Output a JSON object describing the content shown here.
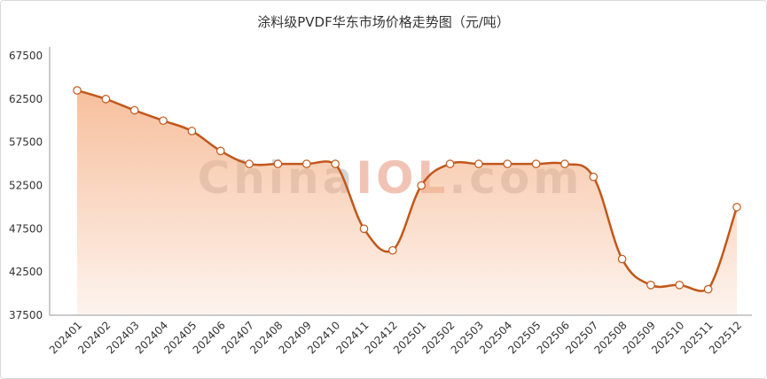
{
  "chart_data": {
    "type": "area",
    "title": "涂料级PVDF华东市场价格走势图（元/吨）",
    "watermark": {
      "parts": [
        "China",
        "IOL",
        ".com"
      ],
      "colors": [
        "#d3d3d3",
        "#f1c3b4",
        "#d3d3d3"
      ]
    },
    "categories": [
      "202401",
      "202402",
      "202403",
      "202404",
      "202405",
      "202406",
      "202407",
      "202408",
      "202409",
      "202410",
      "202411",
      "202412",
      "202501",
      "202502",
      "202503",
      "202504",
      "202505",
      "202506",
      "202507",
      "202508",
      "202509",
      "202510",
      "202511",
      "202512"
    ],
    "values": [
      63500,
      62500,
      61200,
      60000,
      58800,
      56500,
      55000,
      55000,
      55000,
      55000,
      47500,
      45000,
      52500,
      55000,
      55000,
      55000,
      55000,
      55000,
      53500,
      44000,
      41000,
      41000,
      40500,
      50000
    ],
    "ylim": [
      37500,
      67500
    ],
    "yticks": [
      37500,
      42500,
      47500,
      52500,
      57500,
      62500,
      67500
    ],
    "colors": {
      "line": "#c2571a",
      "area_top": "#f5b48c",
      "area_bottom": "#ffffff",
      "marker_fill": "#ffffff",
      "marker_stroke": "#c2571a",
      "axis": "#999999"
    },
    "grid": false,
    "legend": "none"
  }
}
